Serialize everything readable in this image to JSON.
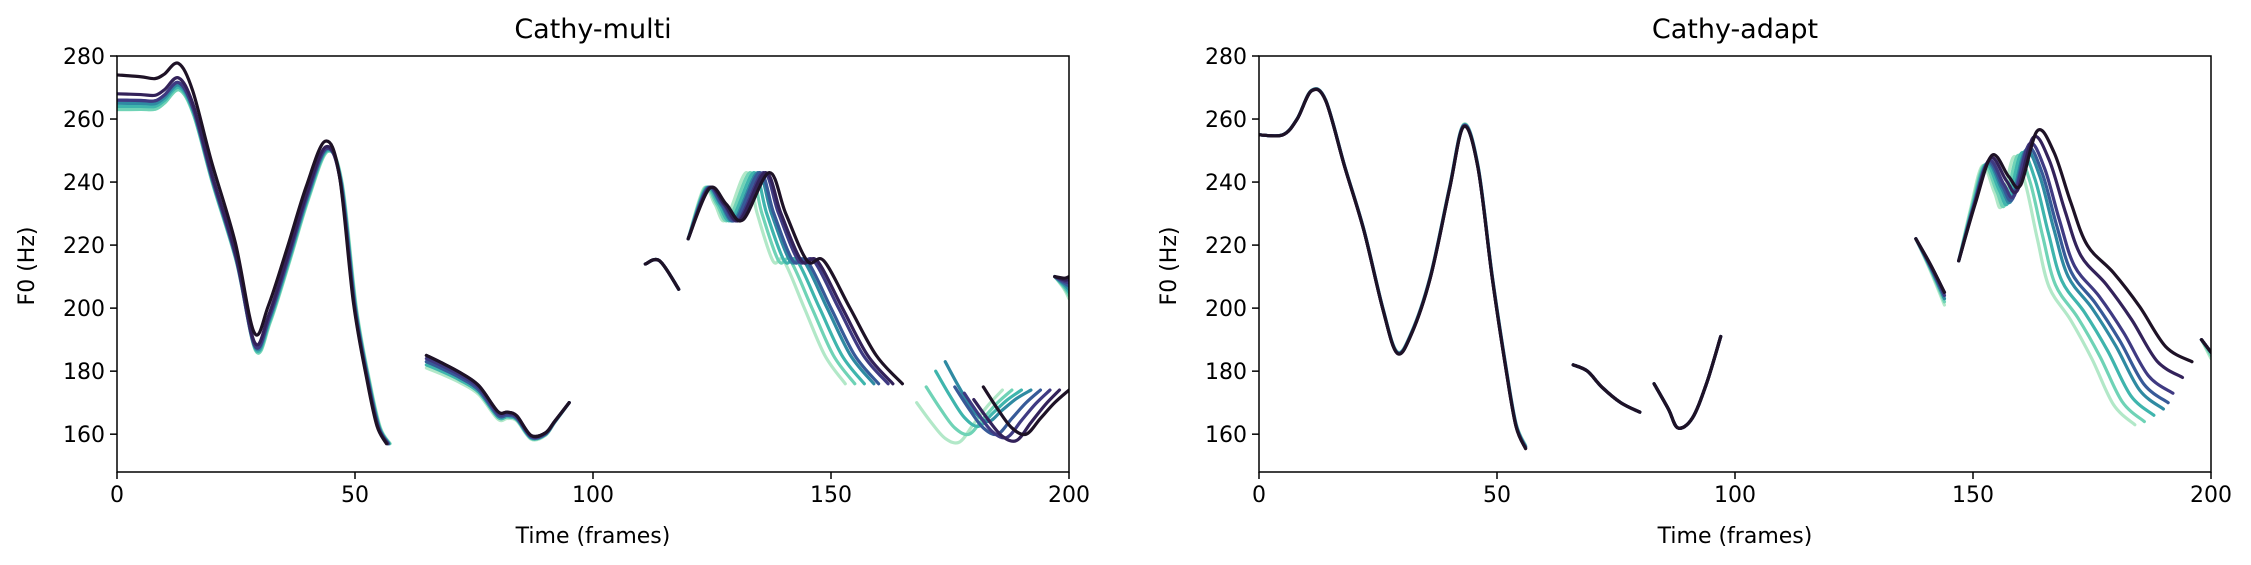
{
  "chart_data": [
    {
      "type": "line",
      "title": "Cathy-multi",
      "xlabel": "Time (frames)",
      "ylabel": "F0 (Hz)",
      "xlim": [
        0,
        200
      ],
      "ylim": [
        148,
        280
      ],
      "xticks": [
        0,
        50,
        100,
        150,
        200
      ],
      "yticks": [
        160,
        180,
        200,
        220,
        240,
        260,
        280
      ],
      "grid": false,
      "legend": "none",
      "color_scale": [
        "#b2e8c8",
        "#6fd3b6",
        "#3fb5ad",
        "#2f8aa2",
        "#375a98",
        "#3f3a82",
        "#33225a",
        "#1e1226"
      ],
      "segments": [
        {
          "name": "segment-1",
          "x": [
            0,
            5,
            8,
            10,
            13,
            16,
            20,
            25,
            29,
            32,
            36,
            40,
            44,
            47,
            50,
            53,
            55,
            57
          ],
          "y": [
            264,
            264,
            264,
            266,
            270,
            262,
            240,
            215,
            187,
            196,
            215,
            235,
            250,
            240,
            200,
            175,
            162,
            157
          ],
          "xshift_end": [
            0.4,
            0.3,
            0.2,
            0.1,
            0,
            -0.1,
            -0.2,
            -0.4
          ],
          "yshift_start": [
            -1,
            -1,
            0,
            1,
            2,
            2,
            4,
            10
          ]
        },
        {
          "name": "segment-2",
          "x": [
            65,
            68,
            72,
            76,
            80,
            82,
            84,
            87,
            90,
            92,
            95
          ],
          "y": [
            183,
            181,
            178,
            174,
            166,
            166,
            165,
            159,
            160,
            164,
            170
          ],
          "yshift_start": [
            -2,
            -1,
            -1,
            0,
            0,
            1,
            2,
            2,
            3
          ],
          "yshift_end": [
            0,
            0,
            0,
            0,
            0,
            0,
            0,
            0
          ]
        },
        {
          "name": "segment-3",
          "x": [
            111,
            114,
            118
          ],
          "y": [
            214,
            215,
            206
          ],
          "yshift_end": [
            0,
            0,
            0,
            0,
            0,
            0,
            0,
            0
          ]
        },
        {
          "name": "segment-4",
          "x": [
            120,
            124,
            127,
            130,
            135,
            138,
            142,
            145,
            150,
            155,
            160
          ],
          "y": [
            222,
            238,
            233,
            228,
            243,
            230,
            215,
            215,
            200,
            185,
            176
          ],
          "xshift_end": [
            -7,
            -5,
            -3,
            -1,
            0,
            2,
            3,
            5
          ],
          "yshift_end": [
            0,
            0,
            0,
            0,
            0,
            0,
            0,
            0
          ]
        },
        {
          "name": "segment-5",
          "x": [
            170,
            173,
            176,
            179,
            182,
            185,
            188
          ],
          "y": [
            175,
            168,
            162,
            160,
            165,
            170,
            174
          ],
          "xshift": [
            -2,
            0,
            2,
            4,
            6,
            8,
            10,
            12
          ],
          "yshift_start": [
            -5,
            0,
            5,
            8,
            0,
            -2,
            -4,
            0
          ]
        },
        {
          "name": "segment-6",
          "x": [
            197,
            199,
            200
          ],
          "y": [
            210,
            208,
            207
          ],
          "yshift_end": [
            -4,
            -3,
            -2,
            -1,
            0,
            1,
            2,
            3
          ]
        }
      ]
    },
    {
      "type": "line",
      "title": "Cathy-adapt",
      "xlabel": "Time (frames)",
      "ylabel": "F0 (Hz)",
      "xlim": [
        0,
        200
      ],
      "ylim": [
        148,
        280
      ],
      "xticks": [
        0,
        50,
        100,
        150,
        200
      ],
      "yticks": [
        160,
        180,
        200,
        220,
        240,
        260,
        280
      ],
      "grid": false,
      "legend": "none",
      "color_scale": [
        "#b2e8c8",
        "#6fd3b6",
        "#3fb5ad",
        "#2f8aa2",
        "#375a98",
        "#3f3a82",
        "#33225a",
        "#1e1226"
      ],
      "segments": [
        {
          "name": "segment-1",
          "x": [
            0,
            5,
            8,
            11,
            14,
            18,
            22,
            26,
            29,
            32,
            36,
            40,
            43,
            46,
            49,
            52,
            54,
            56
          ],
          "y": [
            255,
            255,
            260,
            269,
            266,
            245,
            225,
            200,
            186,
            192,
            210,
            238,
            258,
            245,
            210,
            180,
            163,
            156
          ],
          "yshift_end": [
            0.5,
            0.3,
            0.1,
            0,
            -0.1,
            -0.3,
            -0.5,
            -0.6
          ]
        },
        {
          "name": "segment-2",
          "x": [
            66,
            69,
            72,
            76,
            80
          ],
          "y": [
            182,
            180,
            175,
            170,
            167
          ],
          "yshift_end": [
            0,
            0,
            0,
            0,
            0,
            0,
            0,
            0
          ]
        },
        {
          "name": "segment-3",
          "x": [
            83,
            86,
            88,
            91,
            94,
            97
          ],
          "y": [
            176,
            168,
            162,
            165,
            176,
            191
          ],
          "yshift_end": [
            0,
            0,
            0,
            0,
            0,
            0,
            0,
            0
          ]
        },
        {
          "name": "segment-4",
          "x": [
            138,
            141,
            144
          ],
          "y": [
            222,
            213,
            203
          ],
          "yshift_end": [
            -2,
            -1,
            0,
            0,
            1,
            1,
            2,
            2
          ]
        },
        {
          "name": "segment-5",
          "x": [
            147,
            150,
            153,
            156,
            158,
            161,
            164,
            167,
            170,
            175,
            180,
            185,
            190
          ],
          "y": [
            215,
            232,
            246,
            238,
            234,
            250,
            242,
            225,
            210,
            200,
            188,
            174,
            168
          ],
          "xshift_end": [
            -6,
            -4,
            -2,
            0,
            1,
            2,
            4,
            6
          ],
          "yshift_end": [
            -5,
            -4,
            -2,
            0,
            2,
            5,
            10,
            15
          ]
        },
        {
          "name": "segment-6",
          "x": [
            198,
            200
          ],
          "y": [
            190,
            186
          ],
          "yshift_end": [
            -2,
            -1,
            0,
            0,
            0,
            0,
            0,
            0
          ]
        }
      ]
    }
  ]
}
